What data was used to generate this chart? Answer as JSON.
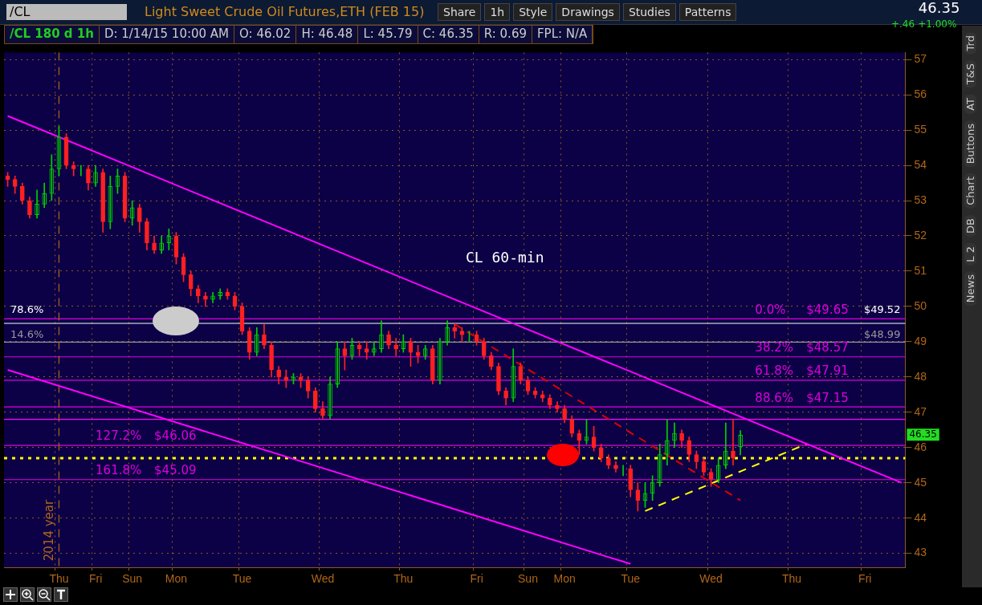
{
  "chart_data": {
    "type": "candlestick",
    "title": "Light Sweet Crude Oil Futures,ETH (FEB 15)",
    "categories": [
      null,
      null,
      null,
      null,
      null,
      null,
      null,
      "Thu",
      null,
      null,
      null,
      null,
      "Fri",
      null,
      null,
      null,
      null,
      "Sun",
      null,
      null,
      null,
      null,
      null,
      "Mon",
      null,
      null,
      null,
      null,
      null,
      null,
      null,
      null,
      "Tue",
      null,
      null,
      null,
      null,
      null,
      null,
      null,
      null,
      null,
      null,
      "Wed",
      null,
      null,
      null,
      null,
      null,
      null,
      null,
      null,
      null,
      null,
      "Thu",
      null,
      null,
      null,
      null,
      null,
      null,
      null,
      null,
      null,
      "Fri",
      null,
      null,
      null,
      null,
      null,
      null,
      "Sun",
      null,
      null,
      null,
      null,
      "Mon",
      null,
      null,
      null,
      null,
      null,
      null,
      null,
      null,
      "Tue",
      null,
      null,
      null,
      null,
      null,
      null,
      null,
      null,
      null,
      null,
      "Wed",
      null,
      null,
      null,
      null,
      null,
      null,
      null,
      null,
      null,
      null,
      "Thu",
      null,
      null,
      null,
      null,
      null,
      null,
      null,
      null,
      null,
      "Fri",
      null,
      null,
      null,
      null,
      null
    ],
    "ohlc": [
      [
        53.7,
        53.8,
        53.4,
        53.6
      ],
      [
        53.6,
        53.7,
        53.2,
        53.4
      ],
      [
        53.4,
        53.5,
        52.9,
        53.0
      ],
      [
        53.0,
        53.1,
        52.5,
        52.6
      ],
      [
        52.6,
        53.3,
        52.5,
        52.9
      ],
      [
        52.9,
        53.5,
        52.8,
        53.2
      ],
      [
        53.2,
        54.3,
        53.0,
        53.9
      ],
      [
        53.9,
        55.1,
        53.7,
        54.8
      ],
      [
        54.8,
        54.9,
        53.9,
        54.0
      ],
      [
        54.0,
        54.1,
        53.7,
        53.9
      ],
      [
        53.9,
        54.0,
        53.7,
        53.9
      ],
      [
        53.9,
        54.0,
        53.3,
        53.5
      ],
      [
        53.5,
        54.0,
        53.4,
        53.8
      ],
      [
        53.8,
        53.9,
        52.1,
        52.4
      ],
      [
        52.4,
        53.7,
        52.2,
        53.4
      ],
      [
        53.4,
        53.9,
        53.2,
        53.7
      ],
      [
        53.7,
        53.8,
        52.4,
        52.5
      ],
      [
        52.5,
        53.0,
        52.3,
        52.8
      ],
      [
        52.8,
        52.9,
        52.1,
        52.4
      ],
      [
        52.4,
        52.5,
        51.6,
        51.8
      ],
      [
        51.8,
        52.0,
        51.5,
        51.6
      ],
      [
        51.6,
        52.0,
        51.5,
        51.8
      ],
      [
        51.8,
        52.2,
        51.6,
        52.0
      ],
      [
        52.0,
        52.1,
        51.2,
        51.4
      ],
      [
        51.4,
        51.5,
        50.7,
        50.9
      ],
      [
        50.9,
        51.0,
        50.3,
        50.5
      ],
      [
        50.5,
        50.6,
        50.1,
        50.3
      ],
      [
        50.3,
        50.4,
        50.0,
        50.2
      ],
      [
        50.2,
        50.4,
        50.1,
        50.3
      ],
      [
        50.3,
        50.5,
        50.2,
        50.4
      ],
      [
        50.4,
        50.5,
        50.2,
        50.3
      ],
      [
        50.3,
        50.4,
        49.9,
        50.0
      ],
      [
        50.0,
        50.1,
        49.2,
        49.3
      ],
      [
        49.3,
        49.4,
        48.5,
        48.7
      ],
      [
        48.7,
        49.4,
        48.6,
        49.2
      ],
      [
        49.2,
        49.5,
        48.8,
        48.9
      ],
      [
        48.9,
        49.0,
        48.0,
        48.2
      ],
      [
        48.2,
        48.3,
        47.8,
        48.0
      ],
      [
        48.0,
        48.2,
        47.7,
        47.9
      ],
      [
        47.9,
        48.1,
        47.8,
        48.0
      ],
      [
        48.0,
        48.1,
        47.7,
        47.9
      ],
      [
        47.9,
        48.0,
        47.4,
        47.6
      ],
      [
        47.6,
        47.7,
        47.0,
        47.1
      ],
      [
        47.1,
        47.3,
        46.8,
        46.9
      ],
      [
        46.9,
        48.0,
        46.8,
        47.8
      ],
      [
        47.8,
        49.0,
        47.7,
        48.8
      ],
      [
        48.8,
        49.0,
        48.2,
        48.6
      ],
      [
        48.6,
        49.1,
        48.5,
        48.9
      ],
      [
        48.9,
        49.0,
        48.6,
        48.8
      ],
      [
        48.8,
        49.0,
        48.5,
        48.7
      ],
      [
        48.7,
        49.0,
        48.6,
        48.8
      ],
      [
        48.8,
        49.6,
        48.7,
        49.2
      ],
      [
        49.2,
        49.3,
        48.8,
        48.9
      ],
      [
        48.9,
        49.1,
        48.6,
        48.8
      ],
      [
        48.8,
        49.2,
        48.7,
        49.0
      ],
      [
        49.0,
        49.1,
        48.3,
        48.7
      ],
      [
        48.7,
        48.9,
        48.4,
        48.6
      ],
      [
        48.6,
        48.9,
        48.5,
        48.8
      ],
      [
        48.8,
        48.9,
        47.8,
        47.9
      ],
      [
        47.9,
        49.1,
        47.8,
        49.0
      ],
      [
        49.0,
        49.6,
        48.9,
        49.4
      ],
      [
        49.4,
        49.5,
        49.1,
        49.3
      ],
      [
        49.3,
        49.4,
        49.0,
        49.2
      ],
      [
        49.2,
        49.3,
        49.0,
        49.2
      ],
      [
        49.2,
        49.3,
        48.9,
        49.0
      ],
      [
        49.0,
        49.1,
        48.5,
        48.6
      ],
      [
        48.6,
        48.7,
        48.2,
        48.3
      ],
      [
        48.3,
        48.4,
        47.5,
        47.6
      ],
      [
        47.6,
        47.7,
        47.2,
        47.4
      ],
      [
        47.4,
        48.8,
        47.3,
        48.3
      ],
      [
        48.3,
        48.4,
        47.8,
        47.9
      ],
      [
        47.9,
        48.0,
        47.5,
        47.6
      ],
      [
        47.6,
        47.7,
        47.4,
        47.5
      ],
      [
        47.5,
        47.6,
        47.3,
        47.4
      ],
      [
        47.4,
        47.5,
        47.1,
        47.2
      ],
      [
        47.2,
        47.3,
        47.0,
        47.1
      ],
      [
        47.1,
        47.2,
        46.7,
        46.8
      ],
      [
        46.8,
        46.9,
        46.3,
        46.4
      ],
      [
        46.4,
        46.5,
        45.8,
        46.2
      ],
      [
        46.2,
        46.8,
        46.1,
        46.3
      ],
      [
        46.3,
        46.6,
        45.9,
        46.0
      ],
      [
        46.0,
        46.1,
        45.6,
        45.7
      ],
      [
        45.7,
        45.8,
        45.4,
        45.5
      ],
      [
        45.5,
        45.6,
        45.3,
        45.4
      ],
      [
        45.4,
        45.5,
        45.2,
        45.4
      ],
      [
        45.4,
        45.5,
        44.6,
        44.8
      ],
      [
        44.8,
        45.0,
        44.2,
        44.5
      ],
      [
        44.5,
        45.0,
        44.3,
        44.7
      ],
      [
        44.7,
        45.2,
        44.5,
        45.0
      ],
      [
        45.0,
        46.1,
        44.9,
        45.8
      ],
      [
        45.8,
        46.8,
        45.5,
        46.2
      ],
      [
        46.2,
        46.7,
        46.0,
        46.4
      ],
      [
        46.4,
        46.5,
        46.0,
        46.2
      ],
      [
        46.2,
        46.3,
        45.6,
        45.8
      ],
      [
        45.8,
        45.9,
        45.4,
        45.6
      ],
      [
        45.6,
        45.7,
        45.2,
        45.3
      ],
      [
        45.3,
        45.4,
        44.9,
        45.1
      ],
      [
        45.1,
        45.7,
        45.0,
        45.5
      ],
      [
        45.5,
        46.7,
        45.4,
        45.9
      ],
      [
        45.9,
        46.8,
        45.5,
        45.7
      ],
      [
        46.02,
        46.48,
        45.79,
        46.35
      ],
      null,
      null,
      null,
      null,
      null,
      null,
      null,
      null,
      null,
      null,
      null,
      null,
      null,
      null,
      null,
      null,
      null,
      null,
      null,
      null,
      null,
      null
    ],
    "series": [
      {
        "type": "line",
        "color": "#ff00ff",
        "values": [
          55.4,
          null,
          null,
          null,
          null,
          null,
          null,
          null,
          null,
          null,
          null,
          null,
          null,
          null,
          null,
          null,
          null,
          null,
          null,
          null,
          null,
          null,
          null,
          null,
          null,
          null,
          null,
          null,
          null,
          null,
          null,
          null,
          null,
          null,
          null,
          null,
          null,
          null,
          null,
          null,
          null,
          null,
          null,
          null,
          null,
          null,
          null,
          null,
          null,
          null,
          null,
          null,
          null,
          null,
          null,
          null,
          null,
          null,
          null,
          null,
          null,
          null,
          null,
          null,
          null,
          null,
          null,
          null,
          null,
          null,
          null,
          null,
          null,
          null,
          null,
          null,
          null,
          null,
          null,
          null,
          null,
          null,
          null,
          null,
          null,
          null,
          null,
          null,
          null,
          null,
          null,
          null,
          null,
          null,
          null,
          null,
          null,
          null,
          null,
          null,
          null,
          null,
          null,
          null,
          null,
          null,
          null,
          null,
          null,
          null,
          null,
          null,
          null,
          null,
          null,
          null,
          null,
          null,
          null,
          null,
          null,
          null,
          45.0
        ]
      },
      {
        "type": "line",
        "color": "#ff00ff",
        "values": [
          48.2,
          null,
          null,
          null,
          null,
          null,
          null,
          null,
          null,
          null,
          null,
          null,
          null,
          null,
          null,
          null,
          null,
          null,
          null,
          null,
          null,
          null,
          null,
          null,
          null,
          null,
          null,
          null,
          null,
          null,
          null,
          null,
          null,
          null,
          null,
          null,
          null,
          null,
          null,
          null,
          null,
          null,
          null,
          null,
          null,
          null,
          null,
          null,
          null,
          null,
          null,
          null,
          null,
          null,
          null,
          null,
          null,
          null,
          null,
          null,
          null,
          null,
          null,
          null,
          null,
          null,
          null,
          null,
          null,
          null,
          null,
          null,
          null,
          null,
          null,
          null,
          null,
          null,
          null,
          null,
          null,
          null,
          null,
          null,
          null,
          42.7,
          null,
          null,
          null,
          null,
          null,
          null,
          null,
          null,
          null,
          null,
          null,
          null,
          null,
          null,
          null,
          null,
          null,
          null,
          null,
          null,
          null,
          null,
          null,
          null,
          null,
          null,
          null,
          null,
          null,
          null,
          null,
          null,
          null,
          null,
          null,
          null,
          null
        ]
      },
      {
        "type": "line",
        "color": "#dd0000",
        "line_style": "dashed",
        "values": [
          null,
          null,
          null,
          null,
          null,
          null,
          null,
          null,
          null,
          null,
          null,
          null,
          null,
          null,
          null,
          null,
          null,
          null,
          null,
          null,
          null,
          null,
          null,
          null,
          null,
          null,
          null,
          null,
          null,
          null,
          null,
          null,
          null,
          null,
          null,
          null,
          null,
          null,
          null,
          null,
          null,
          null,
          null,
          null,
          null,
          null,
          null,
          null,
          null,
          null,
          null,
          null,
          null,
          null,
          null,
          null,
          null,
          null,
          null,
          null,
          null,
          49.5,
          null,
          null,
          null,
          null,
          null,
          null,
          null,
          null,
          null,
          null,
          null,
          null,
          null,
          null,
          null,
          null,
          null,
          null,
          null,
          null,
          null,
          null,
          null,
          null,
          null,
          null,
          null,
          null,
          null,
          null,
          null,
          null,
          null,
          null,
          null,
          null,
          null,
          null,
          44.5,
          null,
          null,
          null,
          null,
          null,
          null,
          null,
          null,
          null,
          null,
          null,
          null,
          null,
          null,
          null,
          null,
          null,
          null,
          null,
          null,
          null,
          null
        ]
      },
      {
        "type": "line",
        "color": "#ffff00",
        "line_style": "dashed",
        "values": [
          null,
          null,
          null,
          null,
          null,
          null,
          null,
          null,
          null,
          null,
          null,
          null,
          null,
          null,
          null,
          null,
          null,
          null,
          null,
          null,
          null,
          null,
          null,
          null,
          null,
          null,
          null,
          null,
          null,
          null,
          null,
          null,
          null,
          null,
          null,
          null,
          null,
          null,
          null,
          null,
          null,
          null,
          null,
          null,
          null,
          null,
          null,
          null,
          null,
          null,
          null,
          null,
          null,
          null,
          null,
          null,
          null,
          null,
          null,
          null,
          null,
          null,
          null,
          null,
          null,
          null,
          null,
          null,
          null,
          null,
          null,
          null,
          null,
          null,
          null,
          null,
          null,
          null,
          null,
          null,
          null,
          null,
          null,
          null,
          null,
          null,
          null,
          44.2,
          null,
          null,
          null,
          null,
          null,
          null,
          null,
          null,
          null,
          null,
          null,
          null,
          null,
          null,
          null,
          null,
          null,
          null,
          null,
          null,
          null,
          46.1,
          null,
          null,
          null,
          null,
          null,
          null,
          null,
          null,
          null,
          null,
          null,
          null,
          null
        ]
      }
    ],
    "ylim": [
      42.6,
      57.2
    ],
    "yticks": [
      43,
      44,
      45,
      46,
      47,
      48,
      49,
      50,
      51,
      52,
      53,
      54,
      55,
      56,
      57
    ],
    "grid": true,
    "legend": false,
    "ref_lines": [
      {
        "axis": "y",
        "value": 49.52,
        "label": "$49.52",
        "color": "#ffffff"
      },
      {
        "axis": "y",
        "value": 48.99,
        "label": "$48.99",
        "color": "#999999"
      },
      {
        "axis": "y",
        "value": 49.65,
        "label": "$49.65",
        "color": "#dd00dd"
      },
      {
        "axis": "y",
        "value": 48.57,
        "label": "$48.57",
        "color": "#dd00dd"
      },
      {
        "axis": "y",
        "value": 47.91,
        "label": "$47.91",
        "color": "#dd00dd"
      },
      {
        "axis": "y",
        "value": 47.15,
        "label": "$47.15",
        "color": "#dd00dd"
      },
      {
        "axis": "y",
        "value": 46.8,
        "label": null,
        "color": "#ff00ff"
      },
      {
        "axis": "y",
        "value": 46.06,
        "label": "$46.06",
        "color": "#dd00dd"
      },
      {
        "axis": "y",
        "value": 45.09,
        "label": "$45.09",
        "color": "#dd00dd"
      },
      {
        "axis": "y",
        "value": 45.7,
        "label": null,
        "color": "#ffff00",
        "line_style": "dotted"
      },
      {
        "axis": "x",
        "value": "Thu",
        "label": "2014 year",
        "color": "#b0661a",
        "line_style": "dashed"
      }
    ],
    "annotations": [
      "/CL",
      "Share",
      "1h",
      "Style",
      "Drawings",
      "Studies",
      "Patterns",
      "46.35",
      "+.46",
      "+1.00%",
      "/CL 180 d 1h",
      "D: 1/14/15 10:00 AM",
      "O: 46.02",
      "H: 46.48",
      "L: 45.79",
      "C: 46.35",
      "R: 0.69",
      "FPL: N/A",
      "Trd",
      "T&S",
      "AT",
      "Buttons",
      "Chart",
      "DB",
      "L 2",
      "News",
      "CL 60-min",
      "78.6%",
      "14.6%",
      "0.0%",
      "38.2%",
      "61.8%",
      "88.6%",
      "127.2%",
      "161.8%",
      {
        "text": "46.35",
        "y": 46.35
      }
    ]
  }
}
